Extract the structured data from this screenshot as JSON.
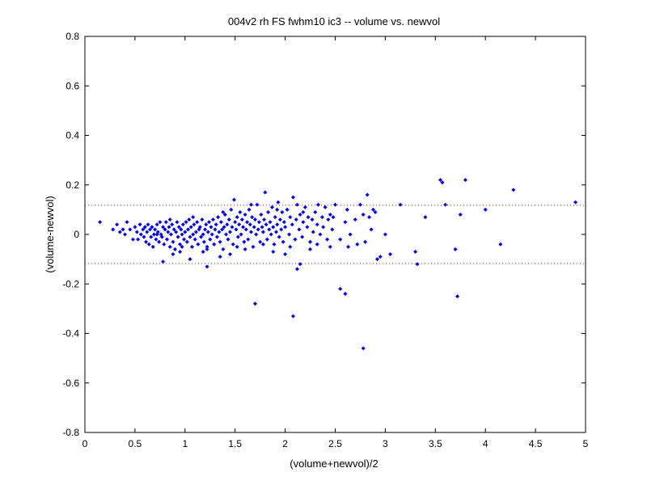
{
  "chart_data": {
    "type": "scatter",
    "title": "004v2 rh FS fwhm10 ic3 -- volume vs. newvol",
    "xlabel": "(volume+newvol)/2",
    "ylabel": "(volume-newvol)",
    "xlim": [
      0,
      5
    ],
    "ylim": [
      -0.8,
      0.8
    ],
    "xticks": [
      "0",
      "0.5",
      "1",
      "1.5",
      "2",
      "2.5",
      "3",
      "3.5",
      "4",
      "4.5",
      "5"
    ],
    "yticks": [
      "-0.8",
      "-0.6",
      "-0.4",
      "-0.2",
      "0",
      "0.2",
      "0.4",
      "0.6",
      "0.8"
    ],
    "grid": false,
    "legend": "none",
    "point_color": "#0000ff",
    "reference_lines": [
      {
        "y": 0.118,
        "style": "dotted",
        "color": "#ff0000"
      },
      {
        "y": -0.118,
        "style": "dotted",
        "color": "#ff0000"
      }
    ],
    "points": [
      [
        0.15,
        0.05
      ],
      [
        0.28,
        0.02
      ],
      [
        0.32,
        0.04
      ],
      [
        0.35,
        0.01
      ],
      [
        0.38,
        0.02
      ],
      [
        0.4,
        0.0
      ],
      [
        0.42,
        0.05
      ],
      [
        0.45,
        0.02
      ],
      [
        0.48,
        -0.02
      ],
      [
        0.5,
        0.03
      ],
      [
        0.52,
        0.01
      ],
      [
        0.53,
        -0.02
      ],
      [
        0.55,
        0.04
      ],
      [
        0.56,
        0.0
      ],
      [
        0.58,
        0.02
      ],
      [
        0.59,
        -0.01
      ],
      [
        0.6,
        0.03
      ],
      [
        0.61,
        -0.03
      ],
      [
        0.62,
        0.01
      ],
      [
        0.63,
        0.04
      ],
      [
        0.64,
        -0.04
      ],
      [
        0.65,
        0.02
      ],
      [
        0.66,
        -0.01
      ],
      [
        0.67,
        0.03
      ],
      [
        0.68,
        -0.05
      ],
      [
        0.69,
        0.0
      ],
      [
        0.7,
        0.02
      ],
      [
        0.71,
        -0.02
      ],
      [
        0.72,
        0.04
      ],
      [
        0.73,
        0.01
      ],
      [
        0.74,
        -0.03
      ],
      [
        0.75,
        0.05
      ],
      [
        0.76,
        0.0
      ],
      [
        0.77,
        -0.01
      ],
      [
        0.78,
        0.03
      ],
      [
        0.79,
        -0.04
      ],
      [
        0.8,
        0.02
      ],
      [
        0.81,
        0.05
      ],
      [
        0.82,
        -0.02
      ],
      [
        0.83,
        0.01
      ],
      [
        0.84,
        0.03
      ],
      [
        0.85,
        -0.05
      ],
      [
        0.86,
        0.0
      ],
      [
        0.87,
        0.04
      ],
      [
        0.88,
        -0.03
      ],
      [
        0.89,
        0.02
      ],
      [
        0.9,
        -0.06
      ],
      [
        0.91,
        0.01
      ],
      [
        0.92,
        0.05
      ],
      [
        0.93,
        -0.01
      ],
      [
        0.94,
        0.03
      ],
      [
        0.95,
        -0.04
      ],
      [
        0.96,
        0.02
      ],
      [
        0.97,
        0.0
      ],
      [
        0.98,
        0.04
      ],
      [
        0.99,
        -0.02
      ],
      [
        1.0,
        0.01
      ],
      [
        1.01,
        0.05
      ],
      [
        1.02,
        -0.03
      ],
      [
        1.03,
        0.02
      ],
      [
        1.04,
        0.06
      ],
      [
        1.05,
        -0.01
      ],
      [
        1.06,
        0.03
      ],
      [
        1.07,
        -0.05
      ],
      [
        1.08,
        0.0
      ],
      [
        1.09,
        0.04
      ],
      [
        1.1,
        -0.02
      ],
      [
        1.11,
        0.01
      ],
      [
        1.12,
        0.05
      ],
      [
        1.13,
        -0.04
      ],
      [
        1.14,
        0.02
      ],
      [
        1.15,
        0.03
      ],
      [
        1.16,
        -0.01
      ],
      [
        1.17,
        0.06
      ],
      [
        1.18,
        0.0
      ],
      [
        1.19,
        -0.03
      ],
      [
        1.2,
        0.02
      ],
      [
        1.21,
        0.04
      ],
      [
        1.22,
        -0.05
      ],
      [
        1.23,
        0.01
      ],
      [
        1.24,
        0.05
      ],
      [
        1.25,
        -0.02
      ],
      [
        1.26,
        0.03
      ],
      [
        1.27,
        0.0
      ],
      [
        1.28,
        0.06
      ],
      [
        1.29,
        -0.04
      ],
      [
        1.3,
        0.02
      ],
      [
        1.31,
        0.04
      ],
      [
        1.32,
        -0.01
      ],
      [
        1.33,
        0.07
      ],
      [
        1.34,
        0.01
      ],
      [
        1.35,
        -0.03
      ],
      [
        1.36,
        0.05
      ],
      [
        1.37,
        0.02
      ],
      [
        1.38,
        -0.06
      ],
      [
        1.39,
        0.03
      ],
      [
        1.4,
        0.08
      ],
      [
        1.41,
        0.0
      ],
      [
        1.42,
        0.04
      ],
      [
        1.43,
        -0.02
      ],
      [
        1.44,
        0.06
      ],
      [
        1.45,
        0.01
      ],
      [
        1.46,
        0.1
      ],
      [
        1.47,
        0.03
      ],
      [
        1.48,
        -0.04
      ],
      [
        1.49,
        0.14
      ],
      [
        1.5,
        0.05
      ],
      [
        1.51,
        0.02
      ],
      [
        1.52,
        0.07
      ],
      [
        1.53,
        -0.01
      ],
      [
        1.54,
        0.04
      ],
      [
        1.55,
        0.09
      ],
      [
        1.56,
        0.0
      ],
      [
        1.57,
        0.06
      ],
      [
        1.58,
        0.03
      ],
      [
        1.59,
        -0.03
      ],
      [
        1.6,
        0.08
      ],
      [
        1.61,
        0.02
      ],
      [
        1.62,
        0.05
      ],
      [
        1.63,
        -0.02
      ],
      [
        1.64,
        0.1
      ],
      [
        1.65,
        0.04
      ],
      [
        1.66,
        0.01
      ],
      [
        1.67,
        0.07
      ],
      [
        1.68,
        -0.05
      ],
      [
        1.69,
        0.03
      ],
      [
        1.7,
        0.06
      ],
      [
        1.71,
        0.0
      ],
      [
        1.72,
        0.12
      ],
      [
        1.73,
        0.02
      ],
      [
        1.74,
        0.05
      ],
      [
        1.75,
        -0.03
      ],
      [
        1.76,
        0.08
      ],
      [
        1.77,
        0.03
      ],
      [
        1.78,
        0.01
      ],
      [
        1.79,
        0.06
      ],
      [
        1.8,
        0.17
      ],
      [
        1.81,
        0.04
      ],
      [
        1.82,
        -0.02
      ],
      [
        1.83,
        0.09
      ],
      [
        1.84,
        0.02
      ],
      [
        1.85,
        0.05
      ],
      [
        1.86,
        0.0
      ],
      [
        1.87,
        0.11
      ],
      [
        1.88,
        0.03
      ],
      [
        1.89,
        -0.04
      ],
      [
        1.9,
        0.07
      ],
      [
        1.91,
        0.01
      ],
      [
        1.92,
        0.04
      ],
      [
        1.93,
        0.13
      ],
      [
        1.94,
        -0.01
      ],
      [
        1.95,
        0.06
      ],
      [
        1.96,
        0.02
      ],
      [
        1.97,
        0.09
      ],
      [
        1.98,
        -0.03
      ],
      [
        1.99,
        0.05
      ],
      [
        2.0,
        0.03
      ],
      [
        2.02,
        0.1
      ],
      [
        2.04,
        0.0
      ],
      [
        2.05,
        0.07
      ],
      [
        2.07,
        0.04
      ],
      [
        2.08,
        0.15
      ],
      [
        2.1,
        -0.02
      ],
      [
        2.11,
        0.06
      ],
      [
        2.12,
        0.12
      ],
      [
        2.14,
        0.02
      ],
      [
        2.15,
        0.08
      ],
      [
        2.17,
        -0.01
      ],
      [
        2.18,
        0.05
      ],
      [
        2.2,
        0.11
      ],
      [
        2.22,
        0.03
      ],
      [
        2.23,
        0.07
      ],
      [
        2.25,
        -0.03
      ],
      [
        2.27,
        0.06
      ],
      [
        2.28,
        0.01
      ],
      [
        2.3,
        0.09
      ],
      [
        2.32,
        0.04
      ],
      [
        2.33,
        0.12
      ],
      [
        2.35,
        0.0
      ],
      [
        2.37,
        0.07
      ],
      [
        2.38,
        0.03
      ],
      [
        2.4,
        0.11
      ],
      [
        2.42,
        -0.02
      ],
      [
        2.43,
        0.06
      ],
      [
        2.45,
        0.08
      ],
      [
        2.47,
        0.02
      ],
      [
        2.5,
        0.12
      ],
      [
        2.55,
        -0.02
      ],
      [
        2.6,
        0.05
      ],
      [
        2.62,
        0.1
      ],
      [
        2.65,
        0.0
      ],
      [
        2.7,
        0.06
      ],
      [
        2.72,
        -0.04
      ],
      [
        2.75,
        0.12
      ],
      [
        2.78,
        0.08
      ],
      [
        2.8,
        -0.03
      ],
      [
        2.82,
        0.16
      ],
      [
        2.84,
        0.07
      ],
      [
        2.86,
        0.02
      ],
      [
        2.88,
        0.1
      ],
      [
        2.9,
        0.09
      ],
      [
        2.92,
        -0.1
      ],
      [
        2.95,
        -0.09
      ],
      [
        3.0,
        0.0
      ],
      [
        3.05,
        -0.08
      ],
      [
        3.15,
        0.12
      ],
      [
        3.3,
        -0.07
      ],
      [
        3.4,
        0.07
      ],
      [
        3.55,
        0.22
      ],
      [
        3.57,
        0.21
      ],
      [
        3.6,
        0.12
      ],
      [
        3.7,
        -0.06
      ],
      [
        3.75,
        0.08
      ],
      [
        3.8,
        0.22
      ],
      [
        4.0,
        0.1
      ],
      [
        4.15,
        -0.04
      ],
      [
        4.28,
        0.18
      ],
      [
        4.9,
        0.13
      ],
      [
        1.7,
        -0.28
      ],
      [
        2.08,
        -0.33
      ],
      [
        2.12,
        -0.14
      ],
      [
        2.15,
        -0.12
      ],
      [
        2.55,
        -0.22
      ],
      [
        2.6,
        -0.24
      ],
      [
        2.78,
        -0.46
      ],
      [
        3.72,
        -0.25
      ],
      [
        3.32,
        -0.12
      ],
      [
        1.22,
        -0.13
      ],
      [
        0.78,
        -0.11
      ],
      [
        1.05,
        -0.1
      ],
      [
        1.45,
        -0.08
      ],
      [
        1.88,
        -0.07
      ],
      [
        2.25,
        -0.06
      ],
      [
        2.45,
        -0.05
      ],
      [
        0.95,
        -0.07
      ],
      [
        1.35,
        -0.09
      ],
      [
        2.0,
        -0.08
      ],
      [
        1.6,
        -0.06
      ],
      [
        0.88,
        -0.08
      ],
      [
        1.18,
        -0.07
      ],
      [
        0.6,
        0.03
      ],
      [
        0.72,
        0.0
      ],
      [
        0.85,
        0.06
      ],
      [
        0.97,
        -0.05
      ],
      [
        1.08,
        0.07
      ],
      [
        1.22,
        -0.06
      ],
      [
        1.38,
        0.09
      ],
      [
        1.52,
        -0.05
      ],
      [
        1.66,
        0.12
      ],
      [
        1.78,
        -0.04
      ],
      [
        1.92,
        0.1
      ],
      [
        2.05,
        -0.05
      ],
      [
        2.18,
        0.09
      ],
      [
        2.32,
        -0.04
      ],
      [
        2.48,
        0.07
      ],
      [
        2.63,
        -0.05
      ]
    ]
  }
}
